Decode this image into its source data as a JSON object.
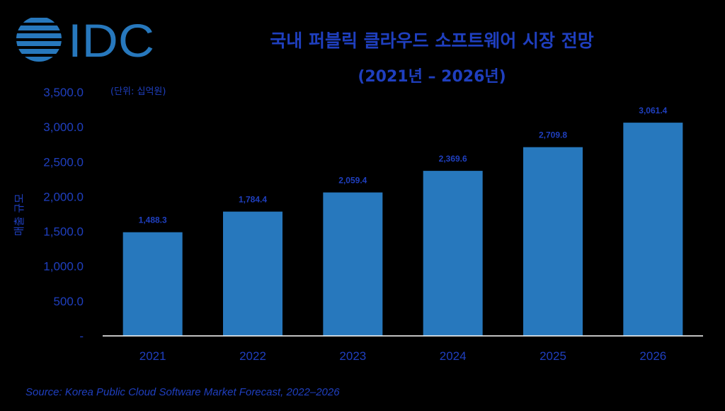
{
  "logo": {
    "text": "IDC"
  },
  "title": "국내 퍼블릭 클라우드 소프트웨어 시장 전망",
  "subtitle": "(2021년 – 2026년)",
  "unit_note": "(단위: 십억원)",
  "source": "Source: Korea Public Cloud Software Market Forecast, 2022–2026",
  "colors": {
    "background": "#000000",
    "bar": "#2778bd",
    "text": "#1f3fbf",
    "axis": "#ffffff"
  },
  "chart_data": {
    "type": "bar",
    "title": "국내 퍼블릭 클라우드 소프트웨어 시장 전망",
    "subtitle": "(2021년 – 2026년)",
    "xlabel": "",
    "ylabel": "매출 규모",
    "categories": [
      "2021",
      "2022",
      "2023",
      "2024",
      "2025",
      "2026"
    ],
    "values": [
      1488.3,
      1784.4,
      2059.4,
      2369.6,
      2709.8,
      3061.4
    ],
    "data_labels": [
      "1,488.3",
      "1,784.4",
      "2,059.4",
      "2,369.6",
      "2,709.8",
      "3,061.4"
    ],
    "ylim": [
      0,
      3500
    ],
    "yticks": [
      0,
      500,
      1000,
      1500,
      2000,
      2500,
      3000,
      3500
    ],
    "ytick_labels": [
      "-",
      "500.0",
      "1,000.0",
      "1,500.0",
      "2,000.0",
      "2,500.0",
      "3,000.0",
      "3,500.0"
    ],
    "grid": false,
    "legend": "none"
  }
}
